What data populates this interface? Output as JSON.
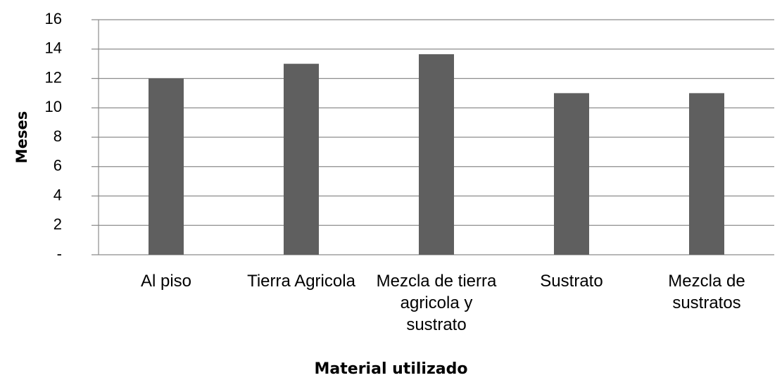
{
  "chart_data": {
    "type": "bar",
    "x_label": "Material utilizado",
    "y_label": "Meses",
    "categories": [
      "Al piso",
      "Tierra Agricola",
      "Mezcla de tierra agricola y sustrato",
      "Sustrato",
      "Mezcla de sustratos"
    ],
    "values": [
      12,
      13,
      13.65,
      11,
      11
    ],
    "color": "#5f5f5f",
    "ylim": [
      0,
      16
    ],
    "yticks": [
      {
        "value": 0,
        "label": "-"
      },
      2,
      4,
      6,
      8,
      10,
      12,
      14,
      16
    ],
    "grid": true
  }
}
